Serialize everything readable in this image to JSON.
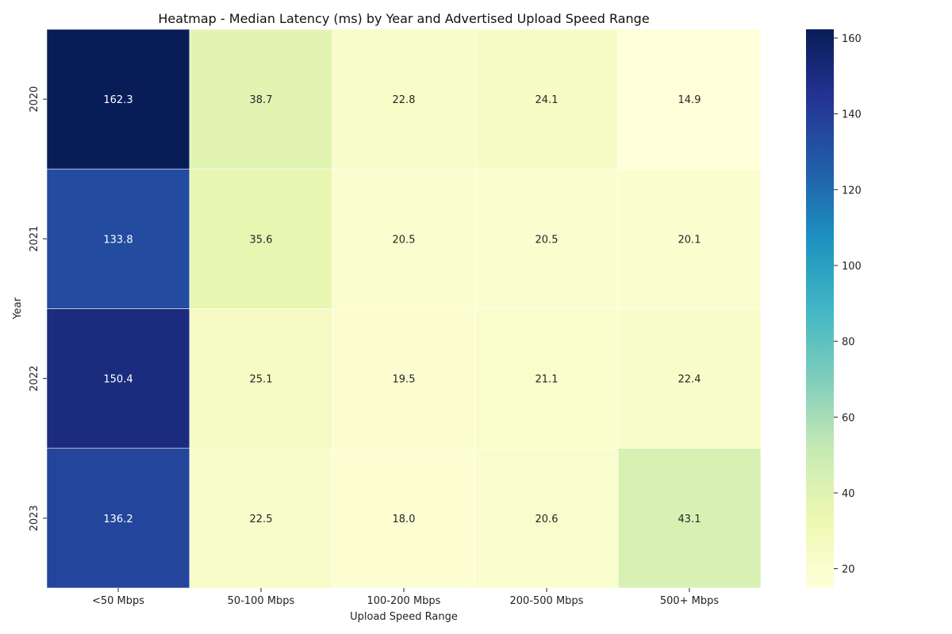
{
  "chart_data": {
    "type": "heatmap",
    "title": "Heatmap - Median Latency (ms) by Year and Advertised Upload Speed Range",
    "xlabel": "Upload Speed Range",
    "ylabel": "Year",
    "x_categories": [
      "<50 Mbps",
      "50-100 Mbps",
      "100-200 Mbps",
      "200-500 Mbps",
      "500+ Mbps"
    ],
    "y_categories": [
      "2020",
      "2021",
      "2022",
      "2023"
    ],
    "values": [
      [
        162.3,
        38.7,
        22.8,
        24.1,
        14.9
      ],
      [
        133.8,
        35.6,
        20.5,
        20.5,
        20.1
      ],
      [
        150.4,
        25.1,
        19.5,
        21.1,
        22.4
      ],
      [
        136.2,
        22.5,
        18.0,
        20.6,
        43.1
      ]
    ],
    "value_labels": [
      [
        "162.3",
        "38.7",
        "22.8",
        "24.1",
        "14.9"
      ],
      [
        "133.8",
        "35.6",
        "20.5",
        "20.5",
        "20.1"
      ],
      [
        "150.4",
        "25.1",
        "19.5",
        "21.1",
        "22.4"
      ],
      [
        "136.2",
        "22.5",
        "18.0",
        "20.6",
        "43.1"
      ]
    ],
    "colorbar": {
      "colormap": "YlGnBu",
      "range": [
        14.9,
        162.3
      ],
      "ticks": [
        20,
        40,
        60,
        80,
        100,
        120,
        140,
        160
      ],
      "tick_labels": [
        "20",
        "40",
        "60",
        "80",
        "100",
        "120",
        "140",
        "160"
      ]
    },
    "grid": false,
    "legend": "colorbar-right"
  }
}
